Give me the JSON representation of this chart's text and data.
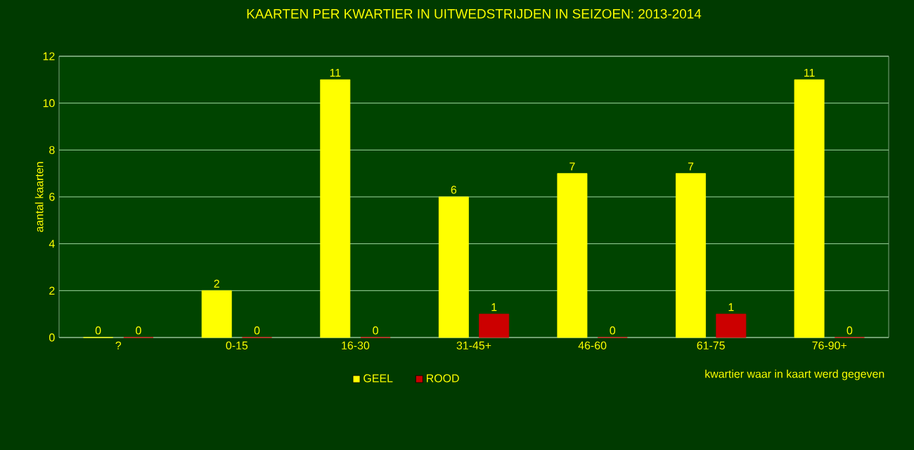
{
  "chart_data": {
    "type": "bar",
    "title": "KAARTEN PER KWARTIER IN UITWEDSTRIJDEN IN SEIZOEN: 2013-2014",
    "xlabel": "kwartier waar in kaart werd gegeven",
    "ylabel": "aantal kaarten",
    "categories": [
      "?",
      "0-15",
      "16-30",
      "31-45+",
      "46-60",
      "61-75",
      "76-90+"
    ],
    "series": [
      {
        "name": "GEEL",
        "color": "#ffff00",
        "values": [
          0,
          2,
          11,
          6,
          7,
          7,
          11
        ]
      },
      {
        "name": "ROOD",
        "color": "#cc0000",
        "values": [
          0,
          0,
          0,
          1,
          0,
          1,
          0
        ]
      }
    ],
    "ylim": [
      0,
      12
    ],
    "yticks": [
      0,
      2,
      4,
      6,
      8,
      10,
      12
    ],
    "grid": "y",
    "legend": "bottom",
    "data_labels": true
  }
}
